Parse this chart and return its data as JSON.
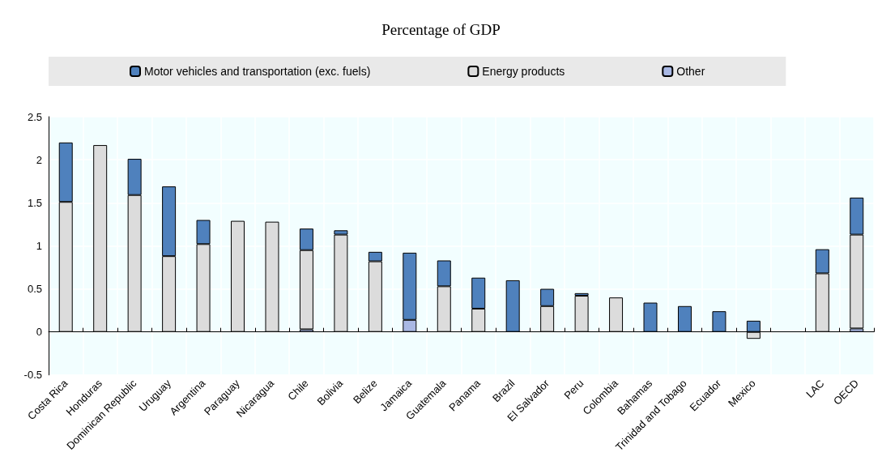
{
  "chart_data": {
    "type": "bar",
    "title": "Percentage of GDP",
    "stacked": true,
    "legend": "top",
    "grid": true,
    "categories": [
      "Costa Rica",
      "Honduras",
      "Dominican Republic",
      "Uruguay",
      "Argentina",
      "Paraguay",
      "Nicaragua",
      "Chile",
      "Bolivia",
      "Belize",
      "Jamaica",
      "Guatemala",
      "Panama",
      "Brazil",
      "El Salvador",
      "Peru",
      "Colombia",
      "Bahamas",
      "Trinidad and Tobago",
      "Ecuador",
      "Mexico",
      null,
      "LAC",
      "OECD"
    ],
    "series": [
      {
        "name": "Other",
        "color": "#a9b8e4",
        "values": [
          null,
          null,
          null,
          null,
          null,
          null,
          null,
          0.03,
          null,
          null,
          0.14,
          null,
          null,
          null,
          null,
          null,
          null,
          null,
          null,
          null,
          null,
          null,
          null,
          0.04
        ]
      },
      {
        "name": "Energy products",
        "color": "#dcdcdc",
        "values": [
          1.51,
          2.17,
          1.59,
          0.88,
          1.02,
          1.29,
          1.28,
          0.92,
          1.13,
          0.82,
          null,
          0.53,
          0.27,
          null,
          0.3,
          0.42,
          0.4,
          null,
          null,
          null,
          -0.08,
          null,
          0.68,
          1.09
        ]
      },
      {
        "name": "Motor vehicles and transportation (exc. fuels)",
        "color": "#4f81bd",
        "values": [
          0.69,
          null,
          0.42,
          0.81,
          0.28,
          null,
          null,
          0.25,
          0.05,
          0.11,
          0.78,
          0.3,
          0.36,
          0.6,
          0.2,
          0.03,
          null,
          0.34,
          0.3,
          0.24,
          0.13,
          null,
          0.28,
          0.43
        ]
      }
    ],
    "ylim": [
      -0.5,
      2.5
    ],
    "yticks": [
      -0.5,
      0,
      0.5,
      1,
      1.5,
      2,
      2.5
    ]
  }
}
